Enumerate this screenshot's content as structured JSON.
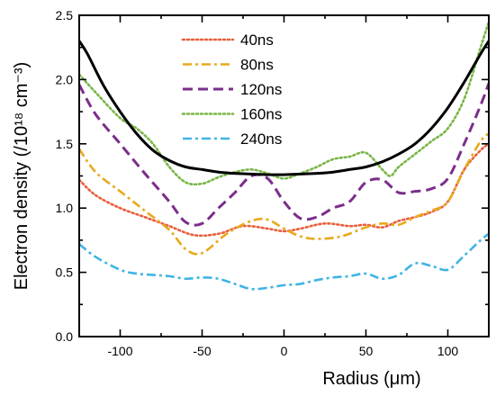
{
  "chart_data": {
    "type": "line",
    "xlabel": "Radius (μm)",
    "ylabel": "Electron density (/10¹⁸ cm⁻³)",
    "xlim": [
      -125,
      125
    ],
    "ylim": [
      0.0,
      2.5
    ],
    "xticks": [
      -100,
      -50,
      0,
      50,
      100
    ],
    "yticks": [
      0.0,
      0.5,
      1.0,
      1.5,
      2.0,
      2.5
    ],
    "grid": false,
    "legend_position": "top-center",
    "series": [
      {
        "name": "40ns",
        "color": "#e8603c",
        "dash": "dotted",
        "x": [
          -125,
          -115,
          -100,
          -85,
          -70,
          -55,
          -40,
          -25,
          -10,
          0,
          10,
          25,
          40,
          50,
          60,
          70,
          80,
          90,
          100,
          110,
          120,
          125
        ],
        "y": [
          1.22,
          1.1,
          1.0,
          0.93,
          0.86,
          0.79,
          0.8,
          0.86,
          0.84,
          0.82,
          0.84,
          0.88,
          0.86,
          0.87,
          0.85,
          0.9,
          0.93,
          0.97,
          1.05,
          1.3,
          1.45,
          1.5
        ]
      },
      {
        "name": "80ns",
        "color": "#e8a91c",
        "dash": "dashdot",
        "x": [
          -125,
          -115,
          -100,
          -85,
          -70,
          -60,
          -50,
          -35,
          -20,
          -10,
          0,
          10,
          20,
          35,
          50,
          60,
          70,
          80,
          90,
          100,
          110,
          120,
          125
        ],
        "y": [
          1.46,
          1.28,
          1.13,
          0.98,
          0.83,
          0.68,
          0.65,
          0.8,
          0.9,
          0.91,
          0.84,
          0.78,
          0.76,
          0.78,
          0.85,
          0.88,
          0.87,
          0.93,
          0.98,
          1.05,
          1.3,
          1.52,
          1.58
        ]
      },
      {
        "name": "120ns",
        "color": "#7b2d8b",
        "dash": "dashed",
        "x": [
          -125,
          -115,
          -100,
          -85,
          -70,
          -60,
          -50,
          -40,
          -30,
          -20,
          -10,
          0,
          10,
          20,
          30,
          40,
          50,
          60,
          70,
          80,
          90,
          100,
          110,
          120,
          125
        ],
        "y": [
          1.96,
          1.73,
          1.5,
          1.27,
          1.05,
          0.89,
          0.88,
          1.0,
          1.12,
          1.25,
          1.23,
          1.05,
          0.92,
          0.93,
          1.0,
          1.05,
          1.2,
          1.22,
          1.12,
          1.13,
          1.15,
          1.23,
          1.5,
          1.8,
          1.97
        ]
      },
      {
        "name": "160ns",
        "color": "#7ab648",
        "dash": "dotted",
        "x": [
          -125,
          -115,
          -100,
          -90,
          -80,
          -70,
          -60,
          -50,
          -40,
          -30,
          -20,
          -10,
          0,
          10,
          20,
          30,
          40,
          50,
          60,
          65,
          70,
          80,
          90,
          100,
          110,
          120,
          125
        ],
        "y": [
          2.04,
          1.9,
          1.7,
          1.62,
          1.5,
          1.32,
          1.2,
          1.19,
          1.24,
          1.28,
          1.3,
          1.27,
          1.23,
          1.27,
          1.32,
          1.38,
          1.4,
          1.43,
          1.3,
          1.25,
          1.32,
          1.42,
          1.52,
          1.62,
          1.85,
          2.25,
          2.45
        ]
      },
      {
        "name": "240ns",
        "color": "#3fb4e4",
        "dash": "dashdot",
        "x": [
          -125,
          -115,
          -100,
          -90,
          -80,
          -70,
          -60,
          -50,
          -40,
          -30,
          -20,
          -10,
          0,
          10,
          20,
          30,
          40,
          50,
          60,
          70,
          80,
          90,
          100,
          110,
          120,
          125
        ],
        "y": [
          0.72,
          0.62,
          0.52,
          0.49,
          0.48,
          0.47,
          0.45,
          0.46,
          0.45,
          0.41,
          0.37,
          0.38,
          0.4,
          0.41,
          0.44,
          0.46,
          0.47,
          0.49,
          0.45,
          0.48,
          0.57,
          0.55,
          0.52,
          0.63,
          0.75,
          0.8
        ]
      },
      {
        "name": "",
        "color": "#000000",
        "dash": "solid",
        "x": [
          -125,
          -120,
          -110,
          -100,
          -90,
          -80,
          -70,
          -60,
          -50,
          -40,
          -30,
          -20,
          -10,
          0,
          10,
          20,
          30,
          40,
          50,
          60,
          70,
          80,
          90,
          100,
          110,
          120,
          125
        ],
        "y": [
          2.3,
          2.2,
          1.95,
          1.75,
          1.58,
          1.45,
          1.37,
          1.32,
          1.3,
          1.28,
          1.27,
          1.265,
          1.26,
          1.26,
          1.265,
          1.27,
          1.28,
          1.3,
          1.32,
          1.36,
          1.42,
          1.5,
          1.62,
          1.78,
          1.98,
          2.2,
          2.3
        ]
      }
    ]
  }
}
